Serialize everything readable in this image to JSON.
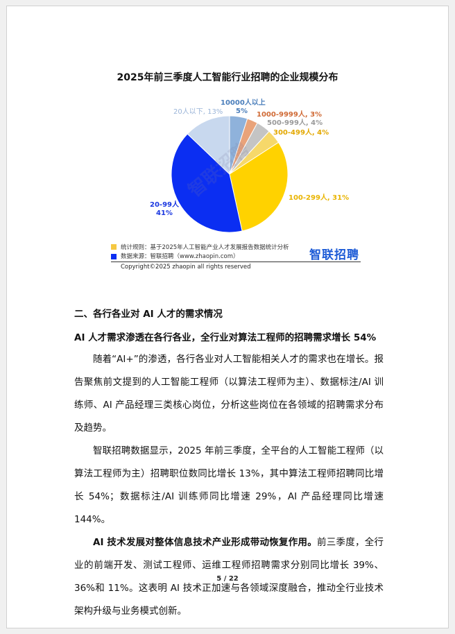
{
  "chart_data": {
    "type": "pie",
    "title": "2025年前三季度人工智能行业招聘的企业规模分布",
    "slices": [
      {
        "label": "10000人以上",
        "value": 5,
        "text": "10000人以上",
        "text2": "5%",
        "color": "#8fb2db",
        "label_color": "#4a7ebb"
      },
      {
        "label": "1000-9999人",
        "value": 3,
        "text": "1000-9999人, 3%",
        "color": "#e9a37a",
        "label_color": "#d06a35"
      },
      {
        "label": "500-999人",
        "value": 4,
        "text": "500-999人, 4%",
        "color": "#c4c4c4",
        "label_color": "#9a9a9a"
      },
      {
        "label": "300-499人",
        "value": 4,
        "text": "300-499人, 4%",
        "color": "#f6d86a",
        "label_color": "#e3a800"
      },
      {
        "label": "100-299人",
        "value": 31,
        "text": "100-299人, 31%",
        "color": "#ffd200",
        "label_color": "#e9b400"
      },
      {
        "label": "20-99人",
        "value": 41,
        "text": "20-99人",
        "text2": "41%",
        "color": "#0b2ef2",
        "label_color": "#1a37e0"
      },
      {
        "label": "20人以下",
        "value": 13,
        "text": "20人以下, 13%",
        "color": "#c8d8ee",
        "label_color": "#9ab4d8"
      }
    ],
    "legend_placement": "bottom-left"
  },
  "chart_notes": {
    "rule": "统计规则：基于2025年人工智能产业人才发展报告数据统计分析",
    "source": "数据来源：智联招聘（www.zhaopin.com）",
    "rule_color": "#f5c842",
    "source_color": "#0b2ef2",
    "logo": "智联招聘",
    "watermark": "智联招聘",
    "copyright": "Copyright©2025 zhaopin all rights reserved"
  },
  "content": {
    "section_heading": "二、各行各业对 AI 人才的需求情况",
    "subheading": "AI 人才需求渗透在各行各业，全行业对算法工程师的招聘需求增长 54%",
    "para1": "随着“AI+”的渗透，各行各业对人工智能相关人才的需求也在增长。报告聚焦前文提到的人工智能工程师（以算法工程师为主）、数据标注/AI 训练师、AI 产品经理三类核心岗位，分析这些岗位在各领域的招聘需求分布及趋势。",
    "para2": "智联招聘数据显示，2025 年前三季度，全平台的人工智能工程师（以算法工程师为主）招聘职位数同比增长 13%，其中算法工程师招聘同比增长 54%；数据标注/AI 训练师同比增速 29%，AI 产品经理同比增速 144%。",
    "para3_bold": "AI  技术发展对整体信息技术产业形成带动恢复作用。",
    "para3_rest": "前三季度，全行业的前端开发、测试工程师、运维工程师招聘需求分别同比增长 39%、36%和 11%。这表明 AI 技术正加速与各领域深度融合，推动全行业技术架构升级与业务模式创新。"
  },
  "page_number": "5 / 22"
}
